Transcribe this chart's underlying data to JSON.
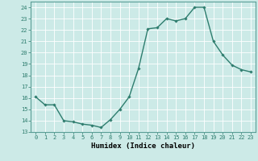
{
  "x": [
    0,
    1,
    2,
    3,
    4,
    5,
    6,
    7,
    8,
    9,
    10,
    11,
    12,
    13,
    14,
    15,
    16,
    17,
    18,
    19,
    20,
    21,
    22,
    23
  ],
  "y": [
    16.1,
    15.4,
    15.4,
    14.0,
    13.9,
    13.7,
    13.6,
    13.4,
    14.1,
    15.0,
    16.1,
    18.6,
    22.1,
    22.2,
    23.0,
    22.8,
    23.0,
    24.0,
    24.0,
    21.0,
    19.8,
    18.9,
    18.5,
    18.3
  ],
  "line_color": "#2e7d6e",
  "marker": "D",
  "marker_size": 1.8,
  "bg_color": "#cceae7",
  "grid_color": "#b0d8d4",
  "xlabel": "Humidex (Indice chaleur)",
  "ylim": [
    13,
    24.5
  ],
  "xlim": [
    -0.5,
    23.5
  ],
  "yticks": [
    13,
    14,
    15,
    16,
    17,
    18,
    19,
    20,
    21,
    22,
    23,
    24
  ],
  "xticks": [
    0,
    1,
    2,
    3,
    4,
    5,
    6,
    7,
    8,
    9,
    10,
    11,
    12,
    13,
    14,
    15,
    16,
    17,
    18,
    19,
    20,
    21,
    22,
    23
  ],
  "tick_fontsize": 5.0,
  "xlabel_fontsize": 6.5,
  "line_width": 1.0
}
